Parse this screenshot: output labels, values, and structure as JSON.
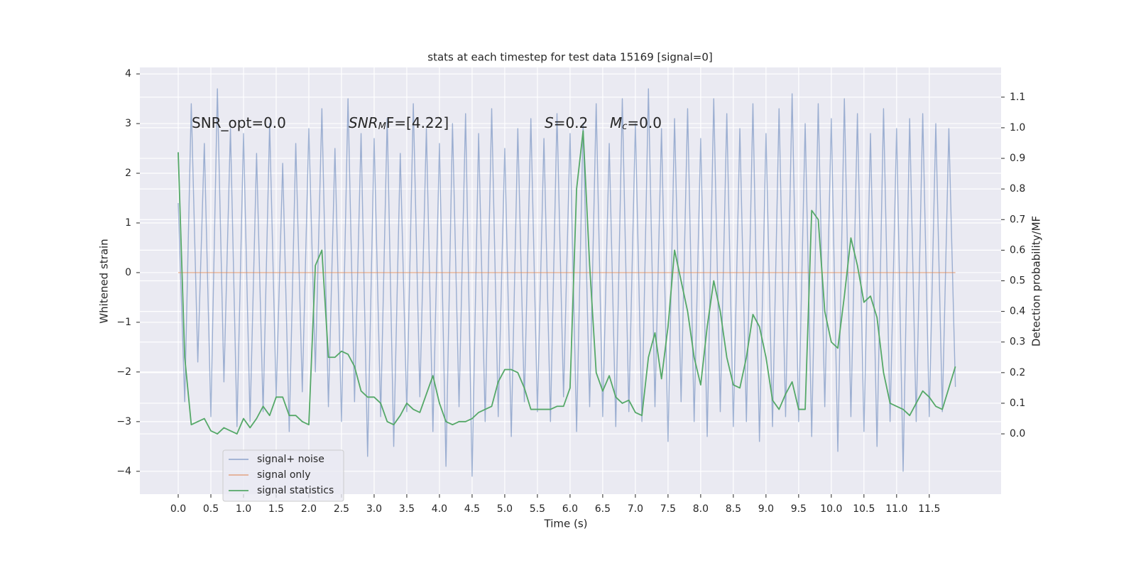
{
  "chart_data": {
    "type": "line",
    "title": "stats at each timestep for test data 15169 [signal=0]",
    "xlabel": "Time (s)",
    "ylabel": "Whitened strain",
    "y2label": "Detection probability/MF",
    "background": "#eaeaf2",
    "grid": true,
    "legend": "lower left",
    "annotations": [
      [
        "SNR_opt=0.0"
      ],
      [
        "SNR",
        "M",
        "F=[4.22]"
      ],
      [
        "S",
        "=0.2"
      ],
      [
        "M",
        "c",
        "=0.0"
      ]
    ],
    "x": [
      0.0,
      0.1,
      0.2,
      0.3,
      0.4,
      0.5,
      0.6,
      0.7,
      0.8,
      0.9,
      1.0,
      1.1,
      1.2,
      1.3,
      1.4,
      1.5,
      1.6,
      1.7,
      1.8,
      1.9,
      2.0,
      2.1,
      2.2,
      2.3,
      2.4,
      2.5,
      2.6,
      2.7,
      2.8,
      2.9,
      3.0,
      3.1,
      3.2,
      3.3,
      3.4,
      3.5,
      3.6,
      3.7,
      3.8,
      3.9,
      4.0,
      4.1,
      4.2,
      4.3,
      4.4,
      4.5,
      4.6,
      4.7,
      4.8,
      4.9,
      5.0,
      5.1,
      5.2,
      5.3,
      5.4,
      5.5,
      5.6,
      5.7,
      5.8,
      5.9,
      6.0,
      6.1,
      6.2,
      6.3,
      6.4,
      6.5,
      6.6,
      6.7,
      6.8,
      6.9,
      7.0,
      7.1,
      7.2,
      7.3,
      7.4,
      7.5,
      7.6,
      7.7,
      7.8,
      7.9,
      8.0,
      8.1,
      8.2,
      8.3,
      8.4,
      8.5,
      8.6,
      8.7,
      8.8,
      8.9,
      9.0,
      9.1,
      9.2,
      9.3,
      9.4,
      9.5,
      9.6,
      9.7,
      9.8,
      9.9,
      10.0,
      10.1,
      10.2,
      10.3,
      10.4,
      10.5,
      10.6,
      10.7,
      10.8,
      10.9,
      11.0,
      11.1,
      11.2,
      11.3,
      11.4,
      11.5,
      11.6,
      11.7,
      11.8,
      11.9
    ],
    "series": [
      {
        "name": "signal+ noise",
        "color": "#4c72b0",
        "opacity": 0.5,
        "values": [
          1.4,
          -2.6,
          3.4,
          -1.8,
          2.6,
          -2.9,
          3.7,
          -2.2,
          2.9,
          -3.1,
          2.8,
          -3.0,
          2.4,
          -2.8,
          3.0,
          -2.5,
          2.2,
          -3.2,
          2.6,
          -2.4,
          2.9,
          -2.0,
          3.3,
          -2.7,
          2.5,
          -3.0,
          3.5,
          -2.6,
          2.8,
          -3.7,
          2.7,
          -2.9,
          3.1,
          -3.5,
          2.4,
          -2.8,
          3.4,
          -2.5,
          2.9,
          -3.2,
          2.6,
          -3.9,
          3.0,
          -2.7,
          3.2,
          -4.1,
          2.8,
          -3.0,
          3.3,
          -2.9,
          2.5,
          -3.3,
          2.9,
          -2.6,
          3.1,
          -2.8,
          2.7,
          -3.0,
          3.2,
          -2.5,
          2.8,
          -3.2,
          3.0,
          -2.7,
          3.4,
          -2.9,
          2.6,
          -3.1,
          3.5,
          -2.8,
          3.0,
          -3.0,
          3.7,
          -2.7,
          2.9,
          -3.4,
          3.1,
          -2.6,
          3.3,
          -3.0,
          2.7,
          -3.3,
          3.5,
          -2.8,
          3.2,
          -3.1,
          2.9,
          -3.0,
          3.4,
          -3.4,
          2.8,
          -3.1,
          3.3,
          -2.9,
          3.6,
          -3.0,
          3.0,
          -3.3,
          3.4,
          -2.7,
          3.1,
          -3.6,
          3.5,
          -2.9,
          3.2,
          -3.2,
          2.8,
          -3.5,
          3.3,
          -3.0,
          2.9,
          -4.0,
          3.1,
          -3.0,
          3.2,
          -2.9,
          3.0,
          -2.8,
          2.9,
          -2.3
        ]
      },
      {
        "name": "signal only",
        "color": "#dd8452",
        "opacity": 0.6,
        "values": [
          0,
          0,
          0,
          0,
          0,
          0,
          0,
          0,
          0,
          0,
          0,
          0,
          0,
          0,
          0,
          0,
          0,
          0,
          0,
          0,
          0,
          0,
          0,
          0,
          0,
          0,
          0,
          0,
          0,
          0,
          0,
          0,
          0,
          0,
          0,
          0,
          0,
          0,
          0,
          0,
          0,
          0,
          0,
          0,
          0,
          0,
          0,
          0,
          0,
          0,
          0,
          0,
          0,
          0,
          0,
          0,
          0,
          0,
          0,
          0,
          0,
          0,
          0,
          0,
          0,
          0,
          0,
          0,
          0,
          0,
          0,
          0,
          0,
          0,
          0,
          0,
          0,
          0,
          0,
          0,
          0,
          0,
          0,
          0,
          0,
          0,
          0,
          0,
          0,
          0,
          0,
          0,
          0,
          0,
          0,
          0,
          0,
          0,
          0,
          0,
          0,
          0,
          0,
          0,
          0,
          0,
          0,
          0,
          0,
          0,
          0,
          0,
          0,
          0,
          0,
          0,
          0,
          0,
          0,
          0
        ]
      },
      {
        "name": "signal statistics",
        "color": "#55a868",
        "opacity": 1,
        "axis": "y2",
        "values": [
          0.92,
          0.25,
          0.03,
          0.04,
          0.05,
          0.01,
          0.0,
          0.02,
          0.01,
          0.0,
          0.05,
          0.02,
          0.05,
          0.09,
          0.06,
          0.12,
          0.12,
          0.06,
          0.06,
          0.04,
          0.03,
          0.55,
          0.6,
          0.25,
          0.25,
          0.27,
          0.26,
          0.22,
          0.14,
          0.12,
          0.12,
          0.1,
          0.04,
          0.03,
          0.06,
          0.1,
          0.08,
          0.07,
          0.13,
          0.19,
          0.1,
          0.04,
          0.03,
          0.04,
          0.04,
          0.05,
          0.07,
          0.08,
          0.09,
          0.17,
          0.21,
          0.21,
          0.2,
          0.15,
          0.08,
          0.08,
          0.08,
          0.08,
          0.09,
          0.09,
          0.15,
          0.8,
          0.99,
          0.55,
          0.2,
          0.14,
          0.19,
          0.12,
          0.1,
          0.11,
          0.07,
          0.06,
          0.25,
          0.33,
          0.18,
          0.35,
          0.6,
          0.5,
          0.4,
          0.25,
          0.16,
          0.35,
          0.5,
          0.4,
          0.25,
          0.16,
          0.15,
          0.25,
          0.39,
          0.35,
          0.25,
          0.11,
          0.08,
          0.13,
          0.17,
          0.08,
          0.08,
          0.73,
          0.7,
          0.4,
          0.3,
          0.28,
          0.45,
          0.64,
          0.55,
          0.43,
          0.45,
          0.38,
          0.2,
          0.1,
          0.09,
          0.08,
          0.06,
          0.1,
          0.14,
          0.12,
          0.09,
          0.08,
          0.15,
          0.22
        ]
      }
    ],
    "xlim": [
      -0.587,
      12.6
    ],
    "xticks": [
      {
        "value": 0,
        "label": "0.0"
      },
      {
        "value": 0.5,
        "label": "0.5"
      },
      {
        "value": 1,
        "label": "1.0"
      },
      {
        "value": 1.5,
        "label": "1.5"
      },
      {
        "value": 2,
        "label": "2.0"
      },
      {
        "value": 2.5,
        "label": "2.5"
      },
      {
        "value": 3,
        "label": "3.0"
      },
      {
        "value": 3.5,
        "label": "3.5"
      },
      {
        "value": 4,
        "label": "4.0"
      },
      {
        "value": 4.5,
        "label": "4.5"
      },
      {
        "value": 5,
        "label": "5.0"
      },
      {
        "value": 5.5,
        "label": "5.5"
      },
      {
        "value": 6,
        "label": "6.0"
      },
      {
        "value": 6.5,
        "label": "6.5"
      },
      {
        "value": 7,
        "label": "7.0"
      },
      {
        "value": 7.5,
        "label": "7.5"
      },
      {
        "value": 8,
        "label": "8.0"
      },
      {
        "value": 8.5,
        "label": "8.5"
      },
      {
        "value": 9,
        "label": "9.0"
      },
      {
        "value": 9.5,
        "label": "9.5"
      },
      {
        "value": 10,
        "label": "10.0"
      },
      {
        "value": 10.5,
        "label": "10.5"
      },
      {
        "value": 11,
        "label": "11.0"
      },
      {
        "value": 11.5,
        "label": "11.5"
      }
    ],
    "ylim": [
      -4.46,
      4.13
    ],
    "yticks": [
      {
        "value": -4,
        "label": "−4"
      },
      {
        "value": -3,
        "label": "−3"
      },
      {
        "value": -2,
        "label": "−2"
      },
      {
        "value": -1,
        "label": "−1"
      },
      0,
      1,
      2,
      3,
      4
    ],
    "y2lim": [
      -0.197,
      1.197
    ],
    "y2ticks": [
      {
        "value": 0,
        "label": "0.0"
      },
      {
        "value": 0.1,
        "label": "0.1"
      },
      {
        "value": 0.2,
        "label": "0.2"
      },
      {
        "value": 0.3,
        "label": "0.3"
      },
      {
        "value": 0.4,
        "label": "0.4"
      },
      {
        "value": 0.5,
        "label": "0.5"
      },
      {
        "value": 0.6,
        "label": "0.6"
      },
      {
        "value": 0.7,
        "label": "0.7"
      },
      {
        "value": 0.8,
        "label": "0.8"
      },
      {
        "value": 0.9,
        "label": "0.9"
      },
      {
        "value": 1,
        "label": "1.0"
      },
      {
        "value": 1.1,
        "label": "1.1"
      }
    ]
  }
}
